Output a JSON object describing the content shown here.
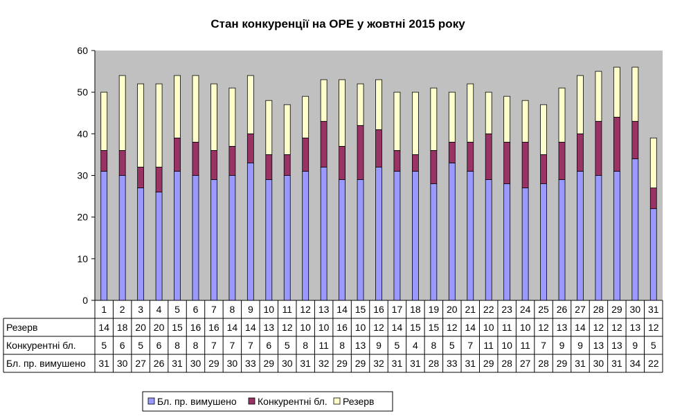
{
  "chart_data": {
    "type": "bar",
    "stacked": true,
    "title": "Стан конкуренції на ОРЕ  у жовтні 2015 року",
    "xlabel": "",
    "ylabel": "",
    "ylim": [
      0,
      60
    ],
    "yticks": [
      0,
      10,
      20,
      30,
      40,
      50,
      60
    ],
    "grid": false,
    "plot_background": "#c0c0c0",
    "legend_position": "bottom",
    "categories": [
      "1",
      "2",
      "3",
      "4",
      "5",
      "6",
      "7",
      "8",
      "9",
      "10",
      "11",
      "12",
      "13",
      "14",
      "15",
      "16",
      "17",
      "18",
      "19",
      "20",
      "21",
      "22",
      "23",
      "24",
      "25",
      "26",
      "27",
      "28",
      "29",
      "30",
      "31"
    ],
    "series": [
      {
        "name": "Бл. пр. вимушено",
        "color": "#9999ff",
        "values": [
          31,
          30,
          27,
          26,
          31,
          30,
          29,
          30,
          33,
          29,
          30,
          31,
          32,
          29,
          29,
          32,
          31,
          31,
          28,
          33,
          31,
          29,
          28,
          27,
          28,
          29,
          31,
          30,
          31,
          34,
          22
        ]
      },
      {
        "name": "Конкурентні бл.",
        "color": "#993366",
        "values": [
          5,
          6,
          5,
          6,
          8,
          8,
          7,
          7,
          7,
          6,
          5,
          8,
          11,
          8,
          13,
          9,
          5,
          4,
          8,
          5,
          7,
          11,
          10,
          11,
          7,
          9,
          9,
          13,
          13,
          9,
          5
        ]
      },
      {
        "name": "Резерв",
        "color": "#ffffcc",
        "values": [
          14,
          18,
          20,
          20,
          15,
          16,
          16,
          14,
          14,
          13,
          12,
          10,
          10,
          16,
          10,
          12,
          14,
          15,
          15,
          12,
          14,
          10,
          11,
          10,
          12,
          13,
          14,
          12,
          12,
          13,
          12
        ]
      }
    ],
    "table_rows_order": [
      "Резерв",
      "Конкурентні бл.",
      "Бл. пр. вимушено"
    ],
    "legend_order": [
      "Бл. пр. вимушено",
      "Конкурентні бл.",
      "Резерв"
    ]
  }
}
